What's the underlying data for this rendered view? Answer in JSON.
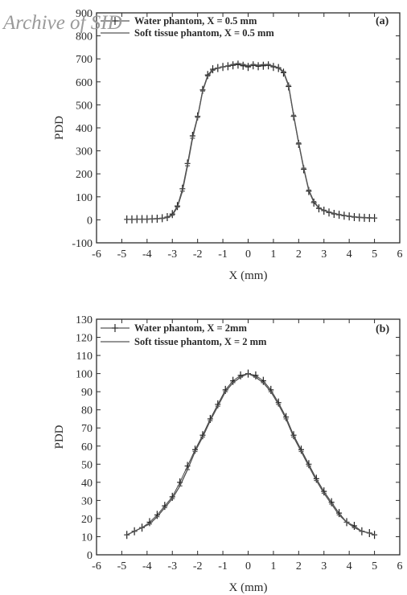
{
  "watermark": "Archive of SID",
  "chart_data": [
    {
      "type": "line",
      "panel_label": "(a)",
      "xlabel": "X (mm)",
      "ylabel": "PDD",
      "xlim": [
        -6,
        6
      ],
      "ylim": [
        -100,
        900
      ],
      "xticks": [
        -6,
        -5,
        -4,
        -3,
        -2,
        -1,
        0,
        1,
        2,
        3,
        4,
        5,
        6
      ],
      "yticks": [
        -100,
        0,
        100,
        200,
        300,
        400,
        500,
        600,
        700,
        800,
        900
      ],
      "legend_position": "top-right",
      "x": [
        -4.8,
        -4.6,
        -4.4,
        -4.2,
        -4.0,
        -3.8,
        -3.6,
        -3.4,
        -3.2,
        -3.0,
        -2.8,
        -2.6,
        -2.4,
        -2.2,
        -2.0,
        -1.8,
        -1.6,
        -1.4,
        -1.2,
        -1.0,
        -0.8,
        -0.6,
        -0.4,
        -0.2,
        0.0,
        0.2,
        0.4,
        0.6,
        0.8,
        1.0,
        1.2,
        1.4,
        1.6,
        1.8,
        2.0,
        2.2,
        2.4,
        2.6,
        2.8,
        3.0,
        3.2,
        3.4,
        3.6,
        3.8,
        4.0,
        4.2,
        4.4,
        4.6,
        4.8,
        5.0
      ],
      "series": [
        {
          "name": "Water phantom, X = 0.5 mm",
          "marker": "plus",
          "values": [
            2,
            2,
            3,
            3,
            3,
            4,
            5,
            7,
            12,
            25,
            60,
            135,
            245,
            365,
            450,
            565,
            630,
            655,
            660,
            665,
            668,
            672,
            675,
            670,
            665,
            672,
            668,
            670,
            672,
            665,
            660,
            640,
            580,
            450,
            330,
            220,
            125,
            75,
            50,
            40,
            32,
            26,
            22,
            18,
            15,
            12,
            10,
            9,
            8,
            8
          ]
        },
        {
          "name": "Soft tissue phantom, X = 0.5 mm",
          "marker": "line",
          "values": [
            2,
            2,
            3,
            3,
            3,
            4,
            5,
            6,
            10,
            20,
            55,
            125,
            235,
            355,
            445,
            560,
            625,
            650,
            660,
            665,
            670,
            676,
            680,
            676,
            670,
            676,
            672,
            675,
            676,
            668,
            662,
            645,
            585,
            455,
            335,
            225,
            130,
            80,
            52,
            42,
            34,
            28,
            23,
            19,
            16,
            13,
            11,
            10,
            9,
            8
          ]
        }
      ]
    },
    {
      "type": "line",
      "panel_label": "(b)",
      "xlabel": "X (mm)",
      "ylabel": "PDD",
      "xlim": [
        -6,
        6
      ],
      "ylim": [
        0,
        130
      ],
      "xticks": [
        -6,
        -5,
        -4,
        -3,
        -2,
        -1,
        0,
        1,
        2,
        3,
        4,
        5,
        6
      ],
      "yticks": [
        0,
        10,
        20,
        30,
        40,
        50,
        60,
        70,
        80,
        90,
        100,
        110,
        120,
        130
      ],
      "legend_position": "top-left",
      "x": [
        -4.8,
        -4.5,
        -4.2,
        -3.9,
        -3.6,
        -3.3,
        -3.0,
        -2.7,
        -2.4,
        -2.1,
        -1.8,
        -1.5,
        -1.2,
        -0.9,
        -0.6,
        -0.3,
        0.0,
        0.3,
        0.6,
        0.9,
        1.2,
        1.5,
        1.8,
        2.1,
        2.4,
        2.7,
        3.0,
        3.3,
        3.6,
        3.9,
        4.2,
        4.5,
        4.8,
        5.0
      ],
      "series": [
        {
          "name": "Water phantom, X = 2mm",
          "marker": "plus",
          "values": [
            11,
            13,
            15,
            18,
            22,
            27,
            32,
            40,
            49,
            58,
            66,
            75,
            83,
            91,
            96,
            99,
            100,
            99,
            96,
            91,
            84,
            76,
            66,
            58,
            50,
            42,
            35,
            29,
            23,
            18,
            16,
            13,
            12,
            11
          ]
        },
        {
          "name": "Soft tissue phantom, X = 2 mm",
          "marker": "line",
          "values": [
            11,
            13,
            15,
            17,
            21,
            26,
            31,
            38,
            47,
            57,
            65,
            74,
            82,
            90,
            95,
            98,
            100,
            98,
            95,
            90,
            83,
            75,
            65,
            57,
            49,
            41,
            34,
            28,
            22,
            18,
            15,
            13,
            12,
            11
          ]
        }
      ]
    }
  ]
}
